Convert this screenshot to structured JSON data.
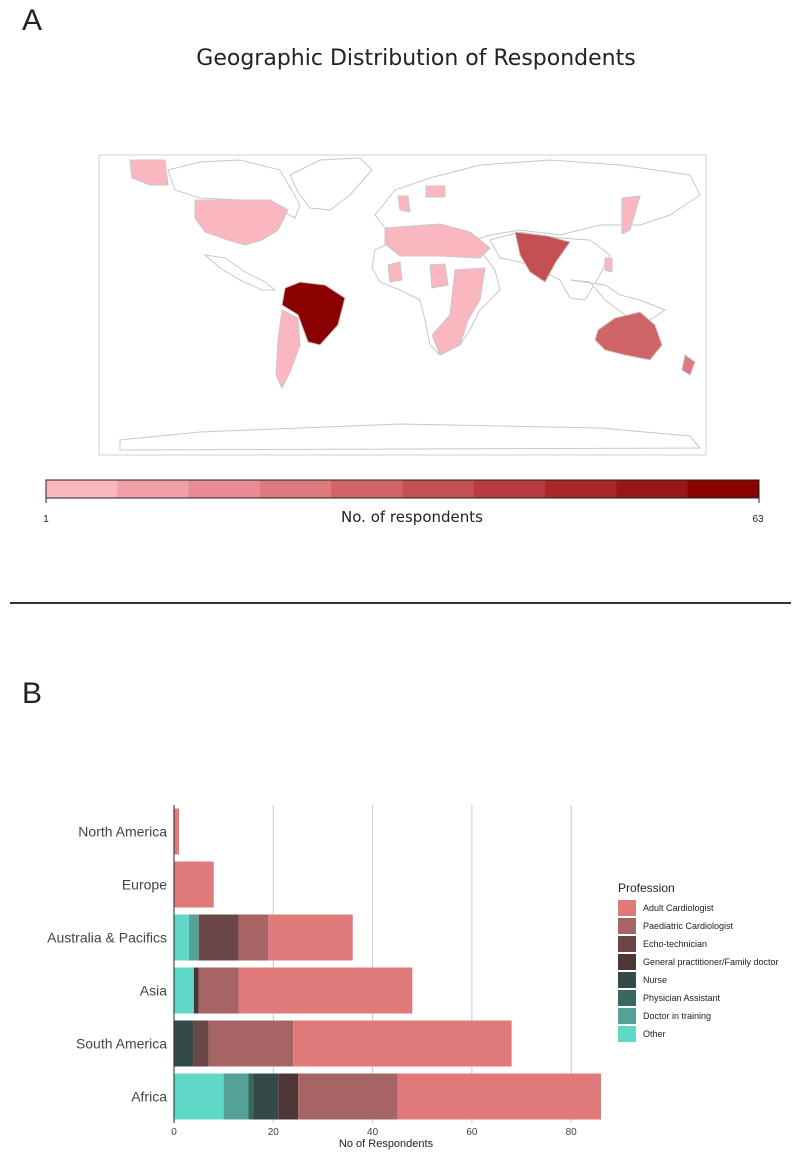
{
  "panels": {
    "a_label": "A",
    "b_label": "B"
  },
  "chart_data": [
    {
      "type": "choropleth",
      "title": "Geographic Distribution of Respondents",
      "colorbar": {
        "label": "No. of respondents",
        "min": 1,
        "max": 63,
        "min_label": "1",
        "max_label": "63",
        "colors": [
          "#fbb7c0",
          "#f1a0a8",
          "#e68c92",
          "#dc7a80",
          "#d06568",
          "#c45054",
          "#b83b3e",
          "#a8282a",
          "#981818",
          "#8b0000"
        ]
      },
      "regions": [
        {
          "name": "Brazil",
          "level": 1.0
        },
        {
          "name": "India",
          "level": 0.55
        },
        {
          "name": "Australia",
          "level": 0.42
        },
        {
          "name": "New Zealand",
          "level": 0.35
        }
      ],
      "colors": {
        "land": "#ffffff",
        "border": "#c8c8c8",
        "low": "#fbb7c0",
        "high": "#8b0000"
      }
    },
    {
      "type": "bar",
      "orientation": "horizontal",
      "stacked": true,
      "categories": [
        "Africa",
        "South America",
        "Asia",
        "Australia & Pacifics",
        "Europe",
        "North America"
      ],
      "xlabel": "No of Respondents",
      "xlim": [
        0,
        86
      ],
      "xticks": [
        0,
        20,
        40,
        60,
        80
      ],
      "legend_title": "Profession",
      "legend_position": "right",
      "grid": true,
      "series": [
        {
          "name": "Other",
          "color": "#5fd8c8",
          "values": [
            10,
            0,
            4,
            3,
            0,
            0
          ]
        },
        {
          "name": "Doctor in training",
          "color": "#55a097",
          "values": [
            5,
            0,
            0,
            2,
            0,
            0
          ]
        },
        {
          "name": "Physician Assistant",
          "color": "#3a6660",
          "values": [
            1,
            0,
            0,
            0,
            0,
            0
          ]
        },
        {
          "name": "Nurse",
          "color": "#344a48",
          "values": [
            5,
            4,
            0,
            0,
            0,
            0
          ]
        },
        {
          "name": "General practitioner/Family doctor",
          "color": "#4e3636",
          "values": [
            4,
            0,
            1,
            0,
            0,
            0
          ]
        },
        {
          "name": "Echo-technician",
          "color": "#6b4646",
          "values": [
            0,
            3,
            0,
            8,
            0,
            0
          ]
        },
        {
          "name": "Paediatric Cardiologist",
          "color": "#a76464",
          "values": [
            20,
            17,
            8,
            6,
            0,
            0
          ]
        },
        {
          "name": "Adult Cardiologist",
          "color": "#e07a7a",
          "values": [
            41,
            44,
            35,
            17,
            8,
            1
          ]
        }
      ],
      "legend_order": [
        "Adult Cardiologist",
        "Paediatric Cardiologist",
        "Echo-technician",
        "General practitioner/Family doctor",
        "Nurse",
        "Physician Assistant",
        "Doctor in training",
        "Other"
      ]
    }
  ]
}
